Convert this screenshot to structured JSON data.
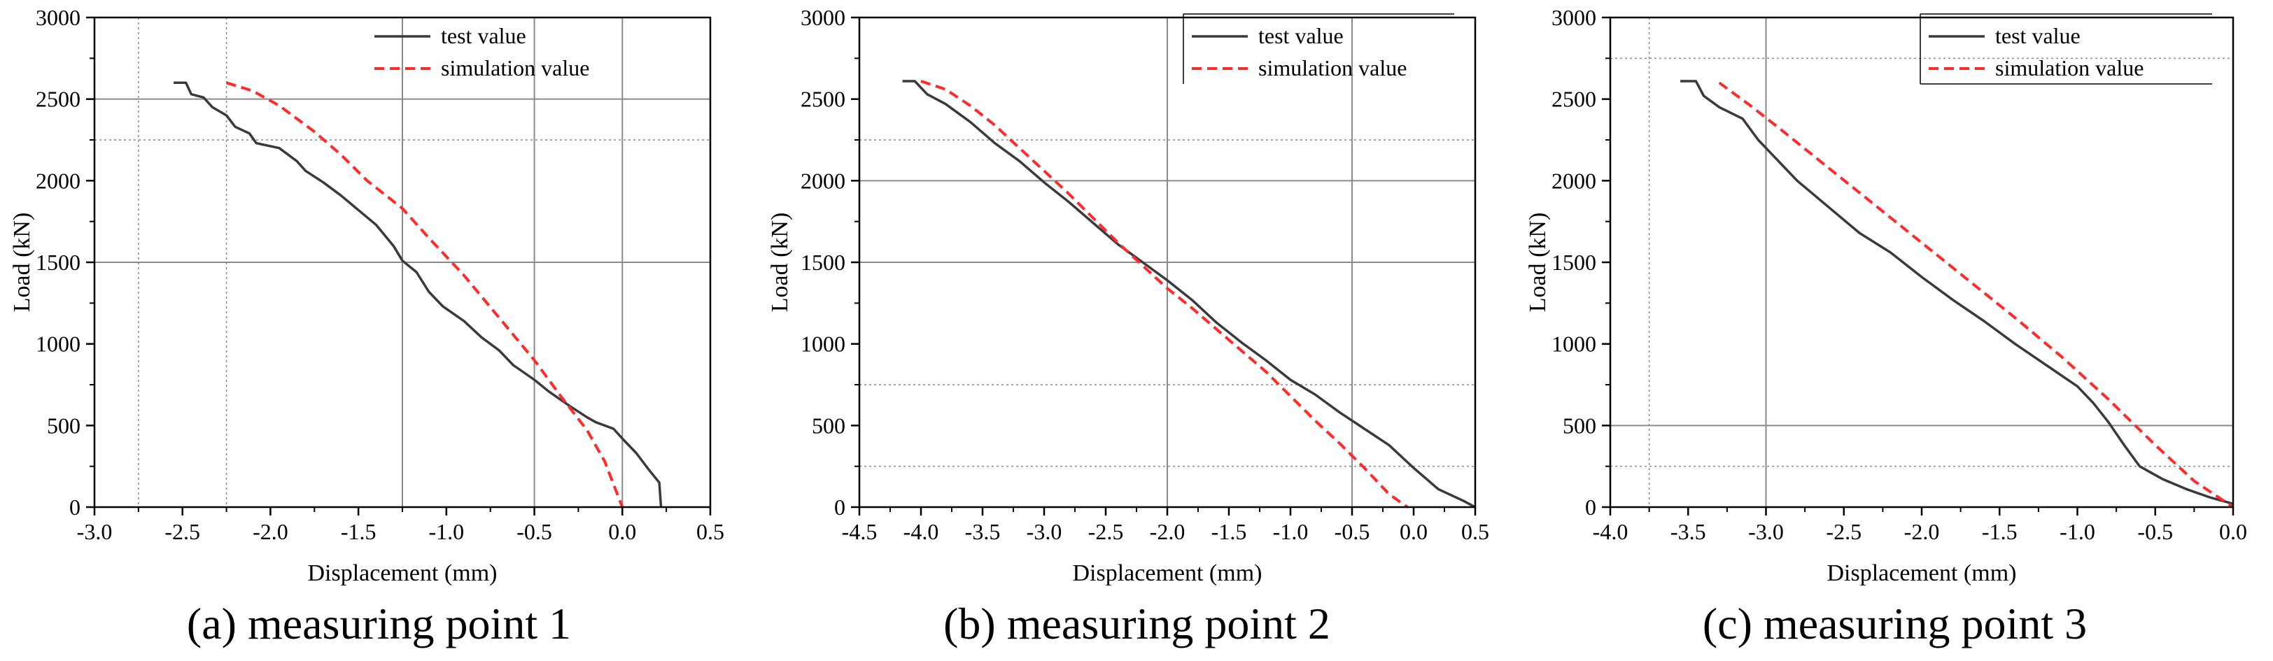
{
  "captions": [
    "(a) measuring point 1",
    "(b) measuring point 2",
    "(c) measuring point 3"
  ],
  "colors": {
    "test": "#3a3a3a",
    "simulation": "#ff2a2a",
    "grid": "#8a8a8a",
    "axis": "#000000"
  },
  "chart_data": [
    {
      "type": "line",
      "title": "",
      "xlabel": "Displacement (mm)",
      "ylabel": "Load (kN)",
      "xlim": [
        -3.0,
        0.5
      ],
      "ylim": [
        0,
        3000
      ],
      "xticks": [
        -3.0,
        -2.5,
        -2.0,
        -1.5,
        -1.0,
        -0.5,
        0.0,
        0.5
      ],
      "xtick_labels": [
        "-3.0",
        "-2.5",
        "-2.0",
        "-1.5",
        "-1.0",
        "-0.5",
        "0.0",
        "0.5"
      ],
      "yticks": [
        0,
        500,
        1000,
        1500,
        2000,
        2500,
        3000
      ],
      "ytick_labels": [
        "0",
        "500",
        "1000",
        "1500",
        "2000",
        "2500",
        "3000"
      ],
      "grid": {
        "solid_x": [
          0.0,
          -0.5,
          -1.25
        ],
        "dotted_x": [
          -2.75,
          -2.25
        ],
        "solid_y": [
          2500,
          1500
        ],
        "dotted_y": [
          2250
        ]
      },
      "legend": "top-right",
      "series": [
        {
          "name": "test value",
          "style": "solid",
          "points": [
            [
              -2.55,
              2600
            ],
            [
              -2.48,
              2600
            ],
            [
              -2.45,
              2530
            ],
            [
              -2.38,
              2510
            ],
            [
              -2.33,
              2450
            ],
            [
              -2.25,
              2400
            ],
            [
              -2.2,
              2330
            ],
            [
              -2.12,
              2290
            ],
            [
              -2.08,
              2230
            ],
            [
              -1.95,
              2200
            ],
            [
              -1.85,
              2120
            ],
            [
              -1.8,
              2060
            ],
            [
              -1.7,
              1990
            ],
            [
              -1.6,
              1910
            ],
            [
              -1.5,
              1820
            ],
            [
              -1.4,
              1730
            ],
            [
              -1.3,
              1600
            ],
            [
              -1.25,
              1510
            ],
            [
              -1.17,
              1440
            ],
            [
              -1.1,
              1320
            ],
            [
              -1.02,
              1230
            ],
            [
              -0.9,
              1140
            ],
            [
              -0.8,
              1040
            ],
            [
              -0.7,
              960
            ],
            [
              -0.62,
              870
            ],
            [
              -0.5,
              780
            ],
            [
              -0.42,
              710
            ],
            [
              -0.3,
              620
            ],
            [
              -0.2,
              550
            ],
            [
              -0.15,
              520
            ],
            [
              -0.05,
              480
            ],
            [
              0.0,
              420
            ],
            [
              0.08,
              330
            ],
            [
              0.15,
              230
            ],
            [
              0.21,
              150
            ],
            [
              0.22,
              0
            ]
          ]
        },
        {
          "name": "simulation value",
          "style": "dashed",
          "points": [
            [
              -2.25,
              2600
            ],
            [
              -2.1,
              2550
            ],
            [
              -1.95,
              2460
            ],
            [
              -1.75,
              2300
            ],
            [
              -1.6,
              2160
            ],
            [
              -1.45,
              2000
            ],
            [
              -1.25,
              1830
            ],
            [
              -1.1,
              1650
            ],
            [
              -0.9,
              1420
            ],
            [
              -0.7,
              1160
            ],
            [
              -0.5,
              900
            ],
            [
              -0.35,
              680
            ],
            [
              -0.2,
              470
            ],
            [
              -0.1,
              280
            ],
            [
              0.0,
              0
            ]
          ]
        }
      ]
    },
    {
      "type": "line",
      "title": "",
      "xlabel": "Displacement (mm)",
      "ylabel": "Load (kN)",
      "xlim": [
        -4.5,
        0.5
      ],
      "ylim": [
        0,
        3000
      ],
      "xticks": [
        -4.5,
        -4.0,
        -3.5,
        -3.0,
        -2.5,
        -2.0,
        -1.5,
        -1.0,
        -0.5,
        0.0,
        0.5
      ],
      "xtick_labels": [
        "-4.5",
        "-4.0",
        "-3.5",
        "-3.0",
        "-2.5",
        "-2.0",
        "-1.5",
        "-1.0",
        "-0.5",
        "0.0",
        "0.5"
      ],
      "yticks": [
        0,
        500,
        1000,
        1500,
        2000,
        2500,
        3000
      ],
      "ytick_labels": [
        "0",
        "500",
        "1000",
        "1500",
        "2000",
        "2500",
        "3000"
      ],
      "grid": {
        "solid_x": [
          -2.0,
          -0.5
        ],
        "dotted_x": [],
        "solid_y": [
          2000,
          1500
        ],
        "dotted_y": [
          2250,
          750,
          250
        ]
      },
      "legend": "top-right",
      "series": [
        {
          "name": "test value",
          "style": "solid",
          "points": [
            [
              -4.15,
              2610
            ],
            [
              -4.05,
              2610
            ],
            [
              -3.95,
              2530
            ],
            [
              -3.8,
              2470
            ],
            [
              -3.6,
              2360
            ],
            [
              -3.4,
              2230
            ],
            [
              -3.2,
              2120
            ],
            [
              -3.0,
              1990
            ],
            [
              -2.8,
              1870
            ],
            [
              -2.6,
              1740
            ],
            [
              -2.4,
              1610
            ],
            [
              -2.2,
              1500
            ],
            [
              -2.0,
              1390
            ],
            [
              -1.8,
              1270
            ],
            [
              -1.6,
              1130
            ],
            [
              -1.4,
              1010
            ],
            [
              -1.2,
              900
            ],
            [
              -1.0,
              780
            ],
            [
              -0.8,
              690
            ],
            [
              -0.6,
              580
            ],
            [
              -0.4,
              480
            ],
            [
              -0.2,
              380
            ],
            [
              0.0,
              240
            ],
            [
              0.2,
              110
            ],
            [
              0.4,
              40
            ],
            [
              0.5,
              0
            ]
          ]
        },
        {
          "name": "simulation value",
          "style": "dashed",
          "points": [
            [
              -4.0,
              2610
            ],
            [
              -3.8,
              2560
            ],
            [
              -3.6,
              2460
            ],
            [
              -3.4,
              2340
            ],
            [
              -3.2,
              2200
            ],
            [
              -3.0,
              2060
            ],
            [
              -2.8,
              1920
            ],
            [
              -2.6,
              1770
            ],
            [
              -2.4,
              1620
            ],
            [
              -2.2,
              1480
            ],
            [
              -2.0,
              1340
            ],
            [
              -1.8,
              1220
            ],
            [
              -1.6,
              1090
            ],
            [
              -1.4,
              960
            ],
            [
              -1.2,
              830
            ],
            [
              -1.0,
              680
            ],
            [
              -0.8,
              530
            ],
            [
              -0.6,
              390
            ],
            [
              -0.4,
              240
            ],
            [
              -0.2,
              80
            ],
            [
              -0.05,
              0
            ]
          ]
        }
      ]
    },
    {
      "type": "line",
      "title": "",
      "xlabel": "Displacement (mm)",
      "ylabel": "Load (kN)",
      "xlim": [
        -4.0,
        0.0
      ],
      "ylim": [
        0,
        3000
      ],
      "xticks": [
        -4.0,
        -3.5,
        -3.0,
        -2.5,
        -2.0,
        -1.5,
        -1.0,
        -0.5,
        0.0
      ],
      "xtick_labels": [
        "-4.0",
        "-3.5",
        "-3.0",
        "-2.5",
        "-2.0",
        "-1.5",
        "-1.0",
        "-0.5",
        "0.0"
      ],
      "yticks": [
        0,
        500,
        1000,
        1500,
        2000,
        2500,
        3000
      ],
      "ytick_labels": [
        "0",
        "500",
        "1000",
        "1500",
        "2000",
        "2500",
        "3000"
      ],
      "grid": {
        "solid_x": [
          -3.0
        ],
        "dotted_x": [
          -3.75
        ],
        "solid_y": [
          500
        ],
        "dotted_y": [
          2750,
          250
        ]
      },
      "legend": "top-right",
      "series": [
        {
          "name": "test value",
          "style": "solid",
          "points": [
            [
              -3.55,
              2610
            ],
            [
              -3.45,
              2610
            ],
            [
              -3.4,
              2520
            ],
            [
              -3.3,
              2450
            ],
            [
              -3.15,
              2380
            ],
            [
              -3.05,
              2250
            ],
            [
              -2.95,
              2150
            ],
            [
              -2.8,
              2000
            ],
            [
              -2.6,
              1840
            ],
            [
              -2.4,
              1680
            ],
            [
              -2.2,
              1560
            ],
            [
              -2.0,
              1410
            ],
            [
              -1.8,
              1270
            ],
            [
              -1.6,
              1140
            ],
            [
              -1.4,
              1000
            ],
            [
              -1.2,
              870
            ],
            [
              -1.0,
              740
            ],
            [
              -0.9,
              640
            ],
            [
              -0.8,
              520
            ],
            [
              -0.7,
              380
            ],
            [
              -0.6,
              250
            ],
            [
              -0.45,
              170
            ],
            [
              -0.3,
              110
            ],
            [
              -0.15,
              60
            ],
            [
              0.0,
              20
            ]
          ]
        },
        {
          "name": "simulation value",
          "style": "dashed",
          "points": [
            [
              -3.3,
              2600
            ],
            [
              -3.1,
              2460
            ],
            [
              -2.9,
              2310
            ],
            [
              -2.6,
              2080
            ],
            [
              -2.3,
              1850
            ],
            [
              -2.0,
              1620
            ],
            [
              -1.7,
              1390
            ],
            [
              -1.4,
              1160
            ],
            [
              -1.1,
              920
            ],
            [
              -0.8,
              660
            ],
            [
              -0.5,
              380
            ],
            [
              -0.25,
              160
            ],
            [
              0.0,
              0
            ]
          ]
        }
      ]
    }
  ]
}
